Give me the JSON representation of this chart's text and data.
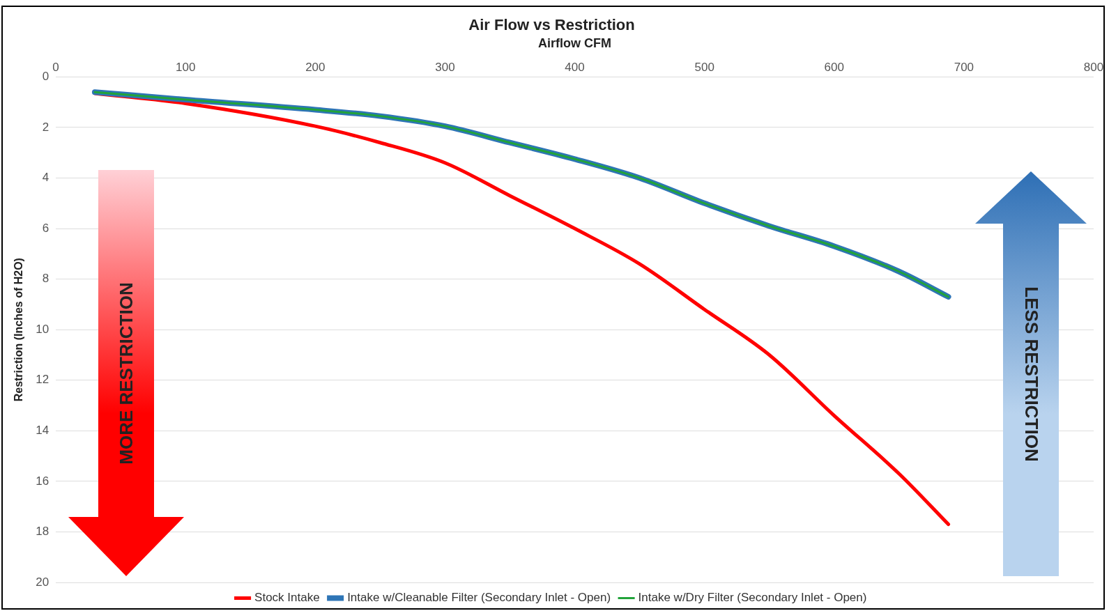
{
  "chart_data": {
    "type": "line",
    "title": "Air Flow vs Restriction",
    "xlabel": "Airflow CFM",
    "ylabel": "Restriction (Inches of H2O)",
    "xlim": [
      0,
      800
    ],
    "xticks": [
      0,
      100,
      200,
      300,
      400,
      500,
      600,
      700,
      800
    ],
    "ylim": [
      20,
      0
    ],
    "yticks": [
      0,
      2,
      4,
      6,
      8,
      10,
      12,
      14,
      16,
      18,
      20
    ],
    "grid": "y",
    "legend": "bottom",
    "marker": "none",
    "line_style": "solid",
    "annotations": [
      "MORE RESTRICTION",
      "LESS RESTRICTION"
    ],
    "series": [
      {
        "name": "Stock Intake",
        "color": "#ff0000",
        "x": [
          30,
          100,
          200,
          250,
          300,
          350,
          400,
          450,
          500,
          550,
          600,
          650,
          688
        ],
        "values": [
          0.65,
          1.05,
          1.95,
          2.6,
          3.4,
          4.7,
          6.0,
          7.4,
          9.2,
          11.0,
          13.4,
          15.7,
          17.7
        ]
      },
      {
        "name": "Intake w/Cleanable Filter (Secondary Inlet - Open)",
        "color": "#2e75b6",
        "x": [
          30,
          100,
          200,
          250,
          300,
          350,
          400,
          450,
          500,
          550,
          600,
          650,
          688
        ],
        "values": [
          0.6,
          0.9,
          1.3,
          1.55,
          1.95,
          2.6,
          3.25,
          4.0,
          5.0,
          5.9,
          6.7,
          7.7,
          8.7
        ]
      },
      {
        "name": "Intake w/Dry Filter (Secondary Inlet - Open)",
        "color": "#22a33a",
        "x": [
          30,
          100,
          200,
          250,
          300,
          350,
          400,
          450,
          500,
          550,
          600,
          650,
          688
        ],
        "values": [
          0.6,
          0.9,
          1.3,
          1.55,
          1.95,
          2.6,
          3.25,
          4.0,
          5.0,
          5.9,
          6.7,
          7.7,
          8.7
        ]
      }
    ]
  }
}
